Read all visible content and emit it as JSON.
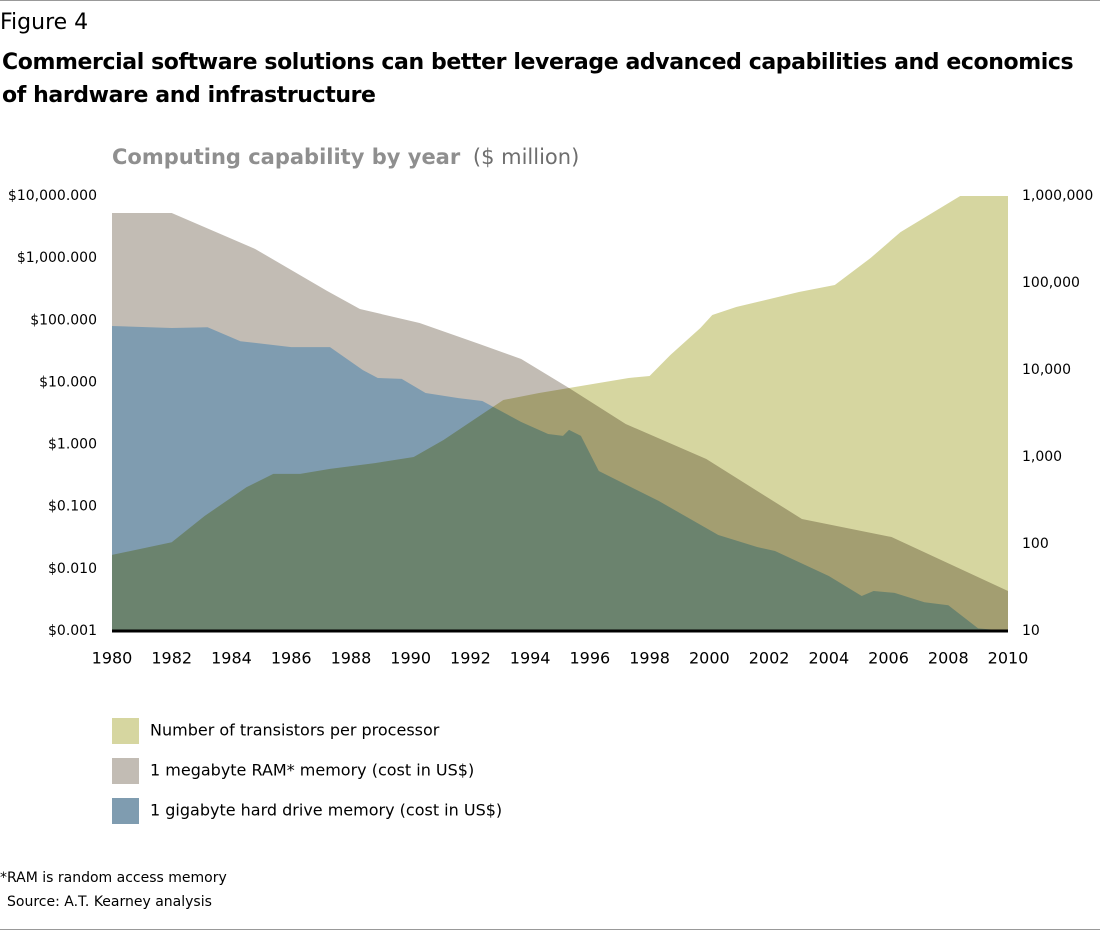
{
  "figure_label": "Figure 4",
  "heading": "Commercial software solutions can better leverage advanced capabilities and economics of hardware and infrastructure",
  "chart_data": {
    "type": "area",
    "title": "Computing capability by year",
    "subtitle": "($ million)",
    "xlim": [
      1980,
      2010
    ],
    "xticks": [
      1980,
      1982,
      1984,
      1986,
      1988,
      1990,
      1992,
      1994,
      1996,
      1998,
      2000,
      2002,
      2004,
      2006,
      2008,
      2010
    ],
    "ylim": [
      0.001,
      10000
    ],
    "yticks": [
      {
        "value": 10000,
        "label": "$10,000.000"
      },
      {
        "value": 1000,
        "label": "$1,000.000"
      },
      {
        "value": 100,
        "label": "$100.000"
      },
      {
        "value": 10,
        "label": "$10.000"
      },
      {
        "value": 1,
        "label": "$1.000"
      },
      {
        "value": 0.1,
        "label": "$0.100"
      },
      {
        "value": 0.01,
        "label": "$0.010"
      },
      {
        "value": 0.001,
        "label": "$0.001"
      }
    ],
    "y2lim": [
      10,
      1000000
    ],
    "y2ticks": [
      {
        "value": 1000000,
        "label": "1,000,000"
      },
      {
        "value": 100000,
        "label": "100,000"
      },
      {
        "value": 10000,
        "label": "10,000"
      },
      {
        "value": 1000,
        "label": "1,000"
      },
      100,
      10
    ],
    "log_scale": true,
    "series": [
      {
        "name": "Number of transistors per processor",
        "color": "#d6d6a0",
        "axis": "y2",
        "x": [
          1980,
          1982,
          1983.1,
          1984.5,
          1985.4,
          1986.3,
          1987.3,
          1988.8,
          1990.1,
          1991.1,
          1992.1,
          1993.1,
          1994.3,
          1995.3,
          1996.3,
          1997.3,
          1998,
          1998.7,
          1999.7,
          2000.1,
          2000.9,
          2003,
          2004.2,
          2005.4,
          2006.4,
          2008.4,
          2010
        ],
        "values": [
          75,
          105,
          210,
          450,
          640,
          640,
          730,
          850,
          1000,
          1570,
          2660,
          4520,
          5440,
          6210,
          7090,
          8090,
          8530,
          14900,
          30400,
          42900,
          53000,
          78900,
          94900,
          194000,
          385000,
          1000000,
          1000000
        ]
      },
      {
        "name": "1 megabyte  RAM* memory (cost in US$)",
        "color": "#c2bcb4",
        "x": [
          1980,
          1982,
          1984.8,
          1987.2,
          1988.3,
          1990.3,
          1992.3,
          1993.7,
          1995.3,
          1997.2,
          1999.9,
          2003.1,
          2006.1,
          2010
        ],
        "values": [
          5330,
          5330,
          1400,
          297,
          152,
          90.5,
          41.6,
          23.8,
          8.13,
          2.14,
          0.586,
          0.0634,
          0.0326,
          0.0044
        ]
      },
      {
        "name": "1 gigabyte hard drive memory (cost in US$)",
        "color": "#7f9cb0",
        "x": [
          1980,
          1982,
          1983.2,
          1984.3,
          1986,
          1987.3,
          1988.4,
          1988.9,
          1989.7,
          1990.5,
          1991.6,
          1992.4,
          1993.7,
          1994.6,
          1995.1,
          1995.3,
          1995.7,
          1996.3,
          1998.3,
          2000.3,
          2001.6,
          2002.2,
          2004,
          2005.1,
          2005.5,
          2006.2,
          2007.2,
          2008,
          2009,
          2010
        ],
        "values": [
          81,
          75,
          77,
          46,
          37,
          37,
          15.8,
          11.8,
          11.4,
          6.76,
          5.6,
          5.03,
          2.31,
          1.48,
          1.38,
          1.72,
          1.38,
          0.376,
          0.124,
          0.0351,
          0.0225,
          0.0194,
          0.00767,
          0.00366,
          0.0044,
          0.0041,
          0.0029,
          0.0026,
          0.0011,
          0.001
        ]
      }
    ]
  },
  "footnote": "*RAM is random access memory",
  "source": "Source: A.T. Kearney analysis"
}
